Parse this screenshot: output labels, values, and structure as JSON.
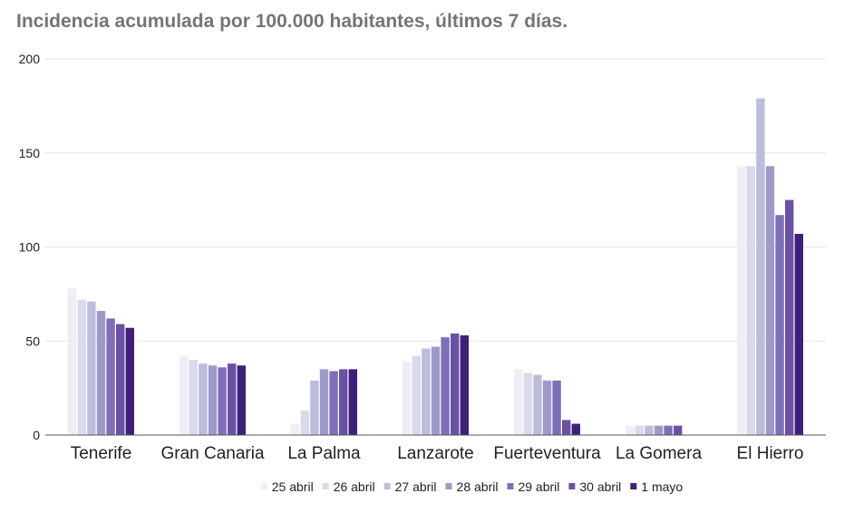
{
  "chart_data": {
    "type": "bar",
    "title": "Incidencia acumulada por 100.000 habitantes, últimos 7 días.",
    "xlabel": "",
    "ylabel": "",
    "ylim": [
      0,
      200
    ],
    "yticks": [
      "0",
      "50",
      "100",
      "150",
      "200"
    ],
    "grid": true,
    "legend_position": "bottom",
    "categories": [
      "Tenerife",
      "Gran Canaria",
      "La Palma",
      "Lanzarote",
      "Fuerteventura",
      "La Gomera",
      "El Hierro"
    ],
    "series": [
      {
        "name": "25 abril",
        "color": "#efedf5",
        "values": [
          78,
          42,
          6,
          39,
          35,
          5,
          143
        ]
      },
      {
        "name": "26 abril",
        "color": "#dadaeb",
        "values": [
          72,
          40,
          13,
          42,
          33,
          5,
          143
        ]
      },
      {
        "name": "27 abril",
        "color": "#bcbddc",
        "values": [
          71,
          38,
          29,
          46,
          32,
          5,
          179
        ]
      },
      {
        "name": "28 abril",
        "color": "#9e9ac8",
        "values": [
          66,
          37,
          35,
          47,
          29,
          5,
          143
        ]
      },
      {
        "name": "29 abril",
        "color": "#7e6fb9",
        "values": [
          62,
          36,
          34,
          52,
          29,
          5,
          117
        ]
      },
      {
        "name": "30 abril",
        "color": "#6a51a3",
        "values": [
          59,
          38,
          35,
          54,
          8,
          5,
          125
        ]
      },
      {
        "name": "1 mayo",
        "color": "#3f1f7a",
        "values": [
          57,
          37,
          35,
          53,
          6,
          null,
          107
        ]
      }
    ]
  }
}
